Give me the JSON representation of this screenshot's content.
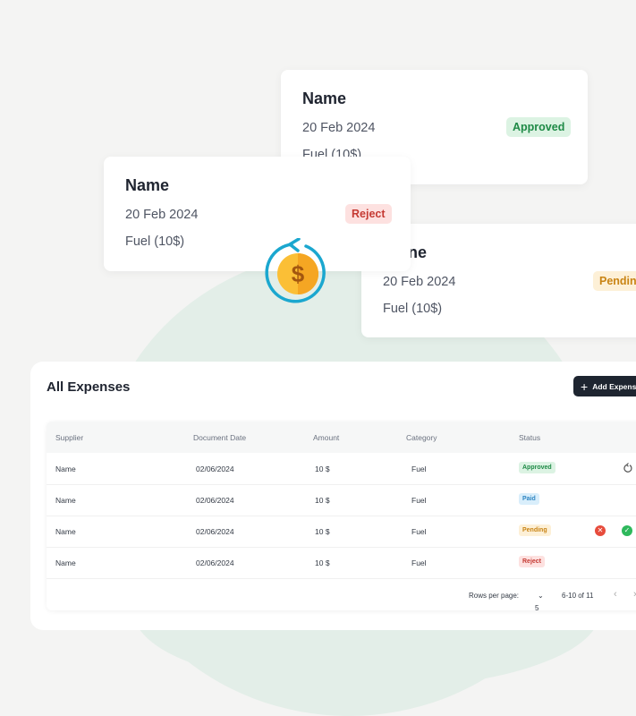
{
  "cards": [
    {
      "name": "Name",
      "date": "20 Feb 2024",
      "desc": "Fuel (10$)",
      "status": "Approved"
    },
    {
      "name": "Name",
      "date": "20 Feb 2024",
      "desc": "Fuel (10$)",
      "status": "Reject"
    },
    {
      "name": "ne",
      "date": "20 Feb 2024",
      "desc": "Fuel (10$)",
      "status": "Pending"
    }
  ],
  "panel": {
    "title": "All Expenses",
    "add_button": "Add Expense",
    "columns": [
      "Supplier",
      "Document Date",
      "Amount",
      "Category",
      "Status"
    ],
    "rows": [
      {
        "supplier": "Name",
        "date": "02/06/2024",
        "amount": "10 $",
        "category": "Fuel",
        "status": "Approved"
      },
      {
        "supplier": "Name",
        "date": "02/06/2024",
        "amount": "10 $",
        "category": "Fuel",
        "status": "Paid"
      },
      {
        "supplier": "Name",
        "date": "02/06/2024",
        "amount": "10 $",
        "category": "Fuel",
        "status": "Pending"
      },
      {
        "supplier": "Name",
        "date": "02/06/2024",
        "amount": "10 $",
        "category": "Fuel",
        "status": "Reject"
      }
    ],
    "footer": {
      "rows_label": "Rows per page:",
      "rows_value": "5",
      "range": "6-10 of 11"
    }
  },
  "icons": [
    "refresh-icon",
    "dollar-coin-icon",
    "reject-action-icon",
    "approve-action-icon",
    "plus-icon",
    "chevron-left-icon",
    "chevron-right-icon",
    "chevron-down-icon"
  ],
  "colors": {
    "approved": "#1e8a46",
    "reject": "#c53a33",
    "pending": "#c98414",
    "paid": "#2f86c2",
    "button": "#1e2530"
  }
}
